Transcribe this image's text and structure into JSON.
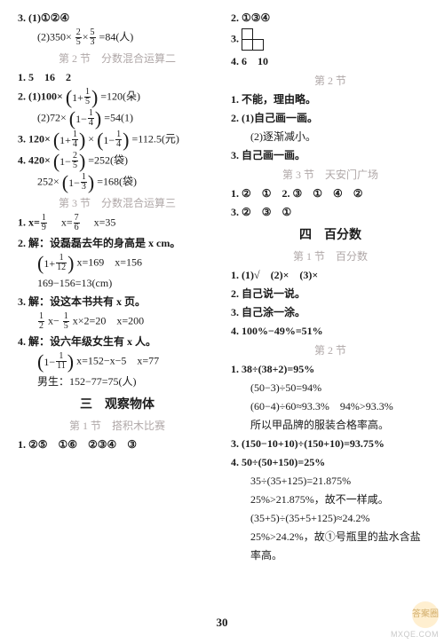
{
  "left": {
    "l1": "3. (1)①②④",
    "l2a": "(2)350×",
    "l2b": "=84(人)",
    "sec2": "第 2 节　分数混合运算二",
    "l3": "1. 5　16　2",
    "l4a": "2. (1)100×",
    "l4a_in": "1+",
    "l4b": "=120(朵)",
    "l5a": "(2)72×",
    "l5a_in": "1−",
    "l5b": "=54(1)",
    "l6a": "3. 120×",
    "l6a_in1": "1+",
    "l6a_mid": "×",
    "l6a_in2": "1−",
    "l6b": "=112.5(元)",
    "l7a": "4. 420×",
    "l7a_in": "1−",
    "l7b": "=252(袋)",
    "l8a": "252×",
    "l8a_in": "1−",
    "l8b": "=168(袋)",
    "sec3": "第 3 节　分数混合运算三",
    "l9": "1. x=",
    "l9b": "　x=",
    "l9c": "　x=35",
    "l10": "2. 解：设磊磊去年的身高是 x cm。",
    "l11in": "1+",
    "l11a": "x=169　x=156",
    "l12": "169−156=13(cm)",
    "l13": "3. 解：设这本书共有 x 页。",
    "l14a": "x−",
    "l14b": "x×2=20　x=200",
    "l15": "4. 解：设六年级女生有 x 人。",
    "l16in": "1−",
    "l16a": "x=152−x−5　x=77",
    "l17": "男生：152−77=75(人)",
    "chap3": "三　观察物体",
    "sec3_1": "第 1 节　搭积木比赛",
    "l18": "1. ②⑤　①⑥　②③④　③"
  },
  "right": {
    "r1": "2. ①③④",
    "r2": "3. ",
    "r3": "4. 6　10",
    "sec2": "第 2 节",
    "r4": "1. 不能，理由略。",
    "r5": "2. (1)自己画一画。",
    "r6": "(2)逐渐减小。",
    "r7": "3. 自己画一画。",
    "sec3": "第 3 节　天安门广场",
    "r8": "1. ②　①　2. ③　①　④　②",
    "r9": "3. ②　③　①",
    "chap4": "四　百分数",
    "sec4_1": "第 1 节　百分数",
    "r10": "1. (1)√　(2)×　(3)×",
    "r11": "2. 自己说一说。",
    "r12": "3. 自己涂一涂。",
    "r13": "4. 100%−49%=51%",
    "sec4_2": "第 2 节",
    "r14": "1. 38÷(38+2)=95%",
    "r15": "(50−3)÷50=94%",
    "r16": "(60−4)÷60≈93.3%　94%>93.3%",
    "r17": "所以甲品牌的服装合格率高。",
    "r18": "3. (150−10+10)÷(150+10)=93.75%",
    "r19": "4. 50÷(50+150)=25%",
    "r20": "35÷(35+125)=21.875%",
    "r21": "25%>21.875%，故不一样咸。",
    "r22": "(35+5)÷(35+5+125)≈24.2%",
    "r23": "25%>24.2%，故①号瓶里的盐水含盐",
    "r24": "率高。"
  },
  "fracs": {
    "f2_5": {
      "n": "2",
      "d": "5"
    },
    "f5_3": {
      "n": "5",
      "d": "3"
    },
    "f1_5": {
      "n": "1",
      "d": "5"
    },
    "f1_4": {
      "n": "1",
      "d": "4"
    },
    "f1_3": {
      "n": "1",
      "d": "3"
    },
    "f1_9": {
      "n": "1",
      "d": "9"
    },
    "f7_6": {
      "n": "7",
      "d": "6"
    },
    "f1_12": {
      "n": "1",
      "d": "12"
    },
    "f1_2": {
      "n": "1",
      "d": "2"
    },
    "f1_5b": {
      "n": "1",
      "d": "5"
    },
    "f1_11": {
      "n": "1",
      "d": "11"
    }
  },
  "footer": "30",
  "wm": "MXQE.COM",
  "wm_cn": "答案圈"
}
